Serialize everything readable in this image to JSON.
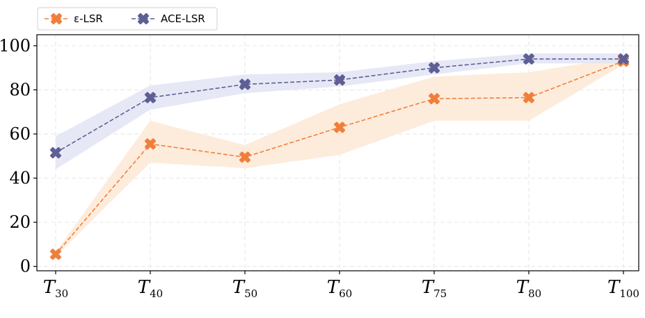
{
  "chart_data": {
    "type": "line",
    "categories": [
      {
        "main": "T",
        "sub": "30"
      },
      {
        "main": "T",
        "sub": "40"
      },
      {
        "main": "T",
        "sub": "50"
      },
      {
        "main": "T",
        "sub": "60"
      },
      {
        "main": "T",
        "sub": "75"
      },
      {
        "main": "T",
        "sub": "80"
      },
      {
        "main": "T",
        "sub": "100"
      }
    ],
    "yticks": [
      0,
      20,
      40,
      60,
      80,
      100
    ],
    "ylim": [
      -2,
      105
    ],
    "grid": true,
    "legend_placement": "top-left, above plot",
    "series": [
      {
        "name": "ε-LSR",
        "color": "#f07f3c",
        "band_color": "#fde9d6",
        "marker": "x-filled",
        "values": [
          5.5,
          55.5,
          49.5,
          63.0,
          76.0,
          76.5,
          93.0
        ],
        "band_low": [
          4.5,
          47.0,
          44.5,
          50.5,
          66.0,
          66.0,
          91.5
        ],
        "band_high": [
          6.5,
          66.0,
          55.0,
          73.5,
          86.0,
          88.0,
          95.0
        ]
      },
      {
        "name": "ACE-LSR",
        "color": "#5e5f94",
        "band_color": "#e3e4f5",
        "marker": "x-filled",
        "values": [
          51.5,
          76.5,
          82.5,
          84.5,
          90.0,
          94.0,
          94.0
        ],
        "band_low": [
          44.0,
          71.0,
          78.5,
          81.5,
          87.0,
          92.0,
          92.0
        ],
        "band_high": [
          59.0,
          82.0,
          87.0,
          88.0,
          93.0,
          96.5,
          96.5
        ]
      }
    ]
  }
}
